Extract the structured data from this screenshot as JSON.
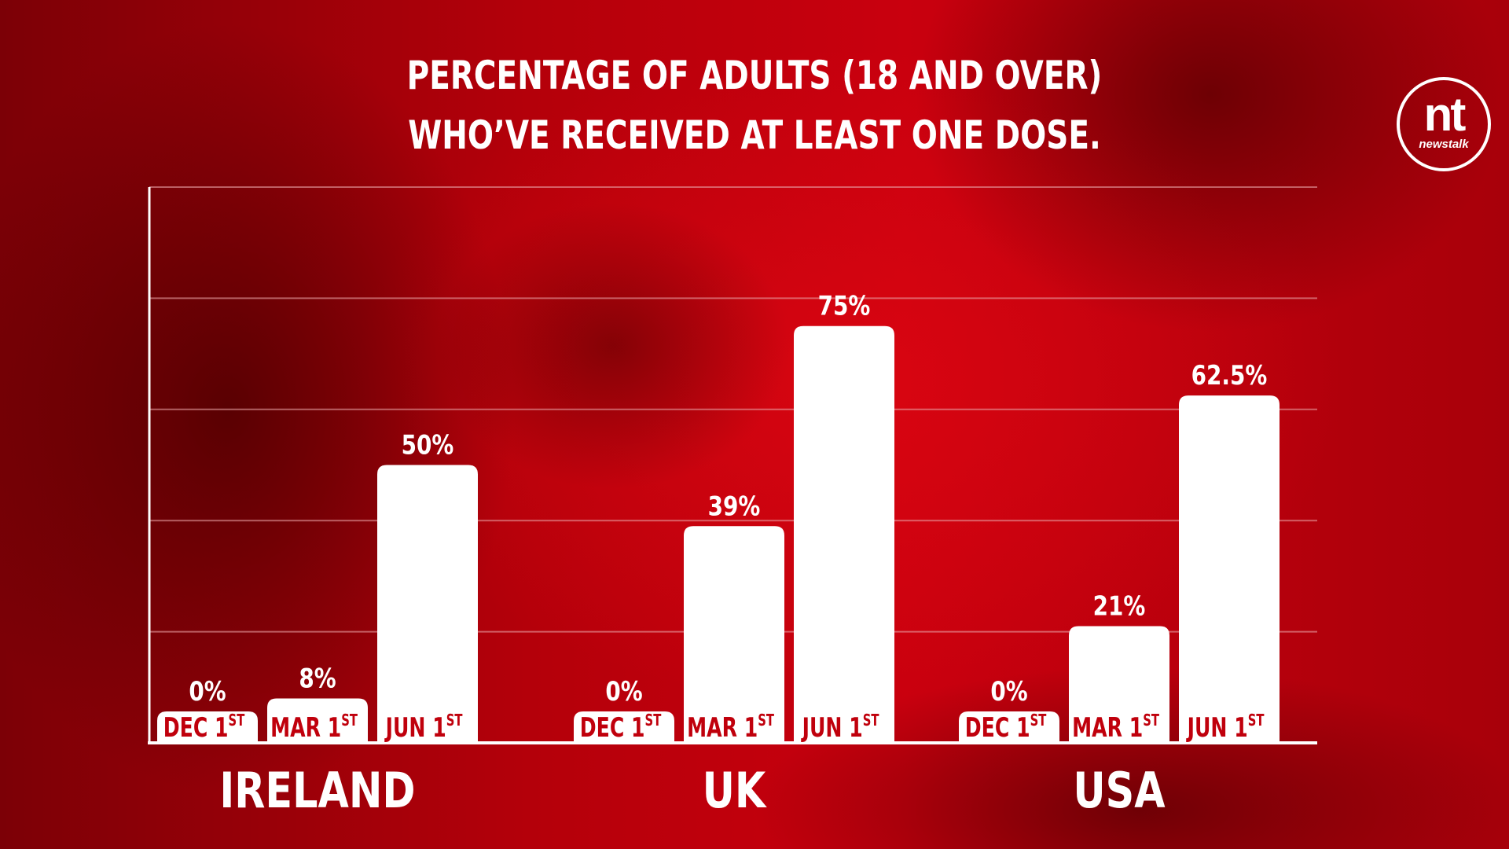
{
  "title_lines": [
    "PERCENTAGE OF ADULTS (18 AND OVER)",
    "WHO’VE RECEIVED AT LEAST ONE DOSE."
  ],
  "logo": {
    "mark": "nt",
    "word": "newstalk"
  },
  "colors": {
    "bar": "#ffffff",
    "bar_label": "#c0000c",
    "value_label": "#ffffff",
    "grid": "#e8a0a4"
  },
  "chart_data": {
    "type": "bar",
    "groups": [
      "IRELAND",
      "UK",
      "USA"
    ],
    "categories": [
      "DEC 1",
      "MAR 1",
      "JUN 1"
    ],
    "category_suffix": "ST",
    "series": [
      {
        "group": "IRELAND",
        "values": [
          0,
          8,
          50
        ],
        "labels": [
          "0%",
          "8%",
          "50%"
        ]
      },
      {
        "group": "UK",
        "values": [
          0,
          39,
          75
        ],
        "labels": [
          "0%",
          "39%",
          "75%"
        ]
      },
      {
        "group": "USA",
        "values": [
          0,
          21,
          62.5
        ],
        "labels": [
          "0%",
          "21%",
          "62.5%"
        ]
      }
    ],
    "ylim": [
      0,
      100
    ],
    "grid": true,
    "yticks_shown": false
  }
}
